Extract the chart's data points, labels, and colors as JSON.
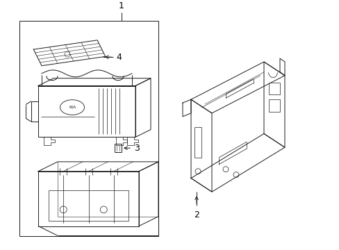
{
  "background_color": "#ffffff",
  "line_color": "#1a1a1a",
  "label_color": "#000000",
  "fig_width": 4.89,
  "fig_height": 3.6,
  "dpi": 100,
  "font_size": 9,
  "lw": 0.7
}
